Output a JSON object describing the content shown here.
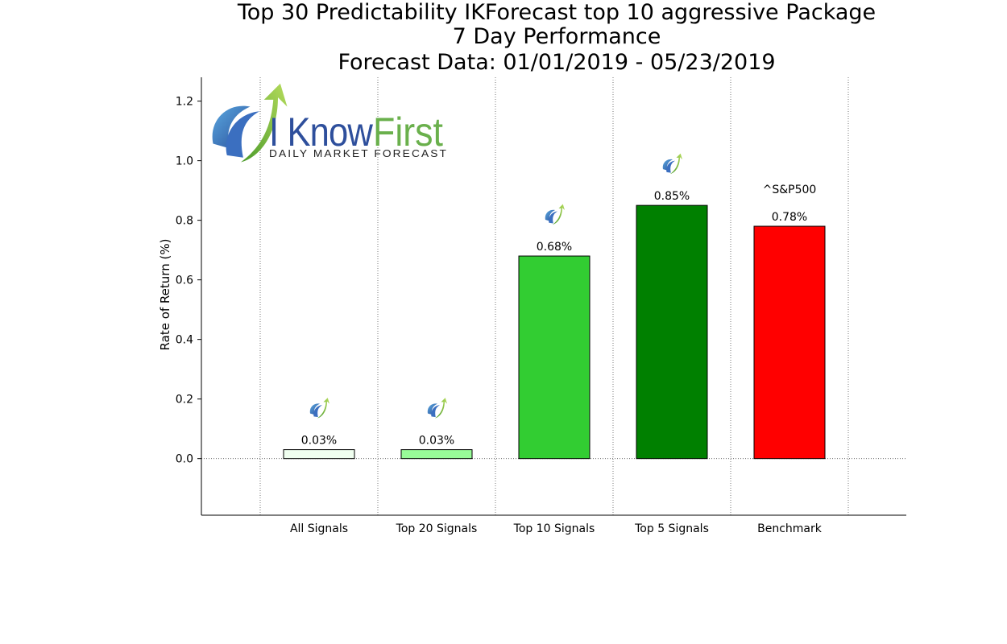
{
  "chart_data": {
    "type": "bar",
    "title_lines": [
      "Top 30 Predictability IKForecast top 10 aggressive Package",
      "7 Day Performance",
      "Forecast Data: 01/01/2019 - 05/23/2019"
    ],
    "ylabel": "Rate of Return (%)",
    "ylim": [
      -0.19,
      1.28
    ],
    "yticks": [
      "0.0",
      "0.2",
      "0.4",
      "0.6",
      "0.8",
      "1.0",
      "1.2"
    ],
    "categories": [
      "All Signals",
      "Top 20 Signals",
      "Top 10 Signals",
      "Top 5 Signals",
      "Benchmark"
    ],
    "values": [
      0.03,
      0.03,
      0.68,
      0.85,
      0.78
    ],
    "value_labels": [
      "0.03%",
      "0.03%",
      "0.68%",
      "0.85%",
      "0.78%"
    ],
    "colors": [
      "#f0fff0",
      "#98fb98",
      "#32cd32",
      "#008000",
      "#ff0000"
    ],
    "benchmark_annotation": "^S&P500",
    "grid": "vertical-dotted",
    "logo": {
      "main_left": "I Know",
      "main_right": "First",
      "tagline": "Daily Market Forecast"
    }
  }
}
